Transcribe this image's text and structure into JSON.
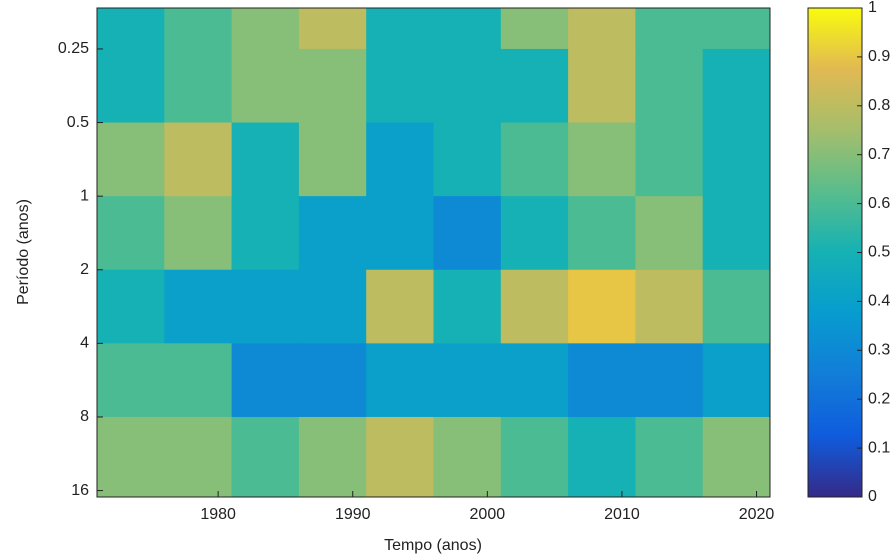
{
  "chart_data": {
    "type": "heatmap",
    "x_label": "Tempo (anos)",
    "y_label": "Período (anos)",
    "xlim": [
      1971,
      2021
    ],
    "xticks": [
      1980,
      1990,
      2000,
      2010,
      2020
    ],
    "ylim": [
      0.17,
      17
    ],
    "yticks": [
      0.25,
      0.5,
      1,
      2,
      4,
      8,
      16
    ],
    "y_scale": "log",
    "y_reversed": true,
    "xbins": [
      1971,
      1976,
      1981,
      1986,
      1991,
      1996,
      2001,
      2006,
      2011,
      2016,
      2021
    ],
    "ybins": [
      0.17,
      0.25,
      0.5,
      1,
      2,
      4,
      8,
      17
    ],
    "values": [
      [
        0.5,
        0.6,
        0.7,
        0.8,
        0.5,
        0.5,
        0.7,
        0.8,
        0.6,
        0.6
      ],
      [
        0.5,
        0.6,
        0.7,
        0.7,
        0.5,
        0.5,
        0.5,
        0.8,
        0.6,
        0.5
      ],
      [
        0.7,
        0.8,
        0.5,
        0.7,
        0.4,
        0.5,
        0.6,
        0.7,
        0.6,
        0.5
      ],
      [
        0.6,
        0.7,
        0.5,
        0.4,
        0.4,
        0.3,
        0.5,
        0.6,
        0.7,
        0.5
      ],
      [
        0.5,
        0.4,
        0.4,
        0.4,
        0.8,
        0.5,
        0.8,
        0.9,
        0.8,
        0.6
      ],
      [
        0.6,
        0.6,
        0.3,
        0.3,
        0.4,
        0.4,
        0.4,
        0.3,
        0.3,
        0.4
      ],
      [
        0.7,
        0.7,
        0.6,
        0.7,
        0.8,
        0.7,
        0.6,
        0.5,
        0.6,
        0.7
      ]
    ],
    "clim": [
      0,
      1
    ],
    "cticks": [
      0,
      0.1,
      0.2,
      0.3,
      0.4,
      0.5,
      0.6,
      0.7,
      0.8,
      0.9,
      1
    ],
    "colormap": [
      "#352a87",
      "#0f5cdd",
      "#127dd8",
      "#079ccf",
      "#15b1b4",
      "#59bd8c",
      "#a5be6b",
      "#e1b952",
      "#f9fb0e"
    ]
  }
}
